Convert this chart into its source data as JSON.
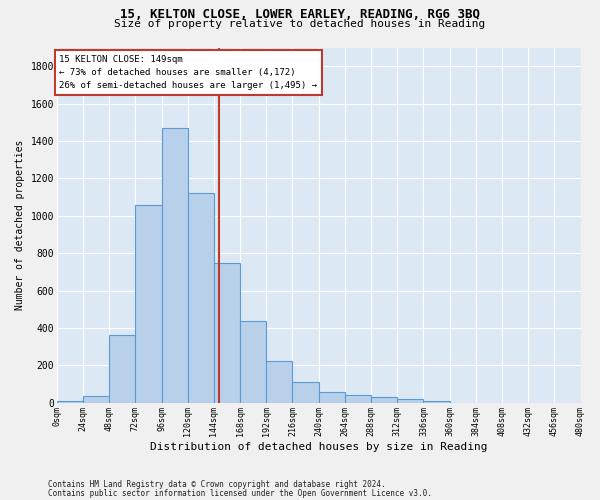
{
  "title_line1": "15, KELTON CLOSE, LOWER EARLEY, READING, RG6 3BQ",
  "title_line2": "Size of property relative to detached houses in Reading",
  "xlabel": "Distribution of detached houses by size in Reading",
  "ylabel": "Number of detached properties",
  "footnote1": "Contains HM Land Registry data © Crown copyright and database right 2024.",
  "footnote2": "Contains public sector information licensed under the Open Government Licence v3.0.",
  "annotation_line1": "15 KELTON CLOSE: 149sqm",
  "annotation_line2": "← 73% of detached houses are smaller (4,172)",
  "annotation_line3": "26% of semi-detached houses are larger (1,495) →",
  "property_size": 149,
  "bar_heights": [
    10,
    35,
    360,
    1060,
    1470,
    1120,
    745,
    435,
    225,
    110,
    55,
    40,
    30,
    20,
    10,
    0,
    0,
    0,
    0,
    0
  ],
  "bin_edges": [
    0,
    24,
    48,
    72,
    96,
    120,
    144,
    168,
    192,
    216,
    240,
    264,
    288,
    312,
    336,
    360,
    384,
    408,
    432,
    456,
    480
  ],
  "bar_color": "#b8d0ea",
  "bar_edge_color": "#5b9bd5",
  "vline_color": "#c0392b",
  "vline_x": 149,
  "yticks": [
    0,
    200,
    400,
    600,
    800,
    1000,
    1200,
    1400,
    1600,
    1800
  ],
  "ylim": [
    0,
    1900
  ],
  "bg_color": "#dde8f5",
  "grid_color": "#ffffff",
  "fig_bg": "#f0f0f0"
}
